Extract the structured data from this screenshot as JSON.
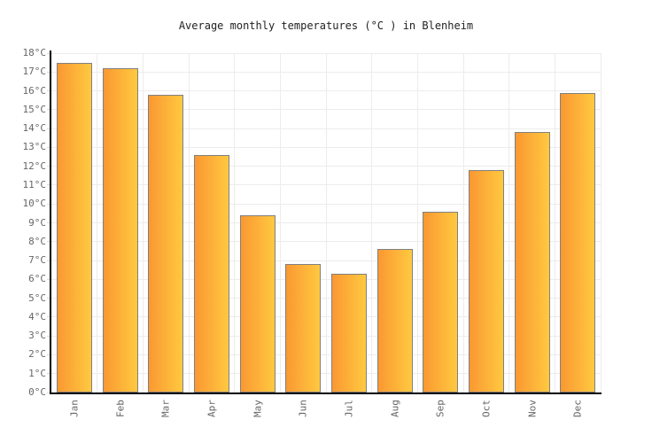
{
  "title": "Average monthly temperatures (°C ) in Blenheim",
  "colors": {
    "background": "#ffffff",
    "bar_gradient_left": "#fa9832",
    "bar_gradient_right": "#ffc940",
    "bar_border": "#808080",
    "gridline": "#ececec",
    "axis": "#000000",
    "tick_label": "#666666",
    "title_text": "#222222"
  },
  "y_axis": {
    "tick_labels": [
      "0°C",
      "1°C",
      "2°C",
      "3°C",
      "4°C",
      "5°C",
      "6°C",
      "7°C",
      "8°C",
      "9°C",
      "10°C",
      "11°C",
      "12°C",
      "13°C",
      "14°C",
      "15°C",
      "16°C",
      "17°C",
      "18°C"
    ]
  },
  "chart_data": {
    "type": "bar",
    "title": "Average monthly temperatures (°C ) in Blenheim",
    "categories": [
      "Jan",
      "Feb",
      "Mar",
      "Apr",
      "May",
      "Jun",
      "Jul",
      "Aug",
      "Sep",
      "Oct",
      "Nov",
      "Dec"
    ],
    "values": [
      17.5,
      17.2,
      15.8,
      12.6,
      9.4,
      6.8,
      6.3,
      7.6,
      9.6,
      11.8,
      13.8,
      15.9
    ],
    "xlabel": "",
    "ylabel": "",
    "ylim": [
      0,
      18
    ],
    "ytick_step": 1,
    "ytick_suffix": "°C",
    "grid": true,
    "legend_position": "none",
    "bar_orientation": "vertical"
  }
}
